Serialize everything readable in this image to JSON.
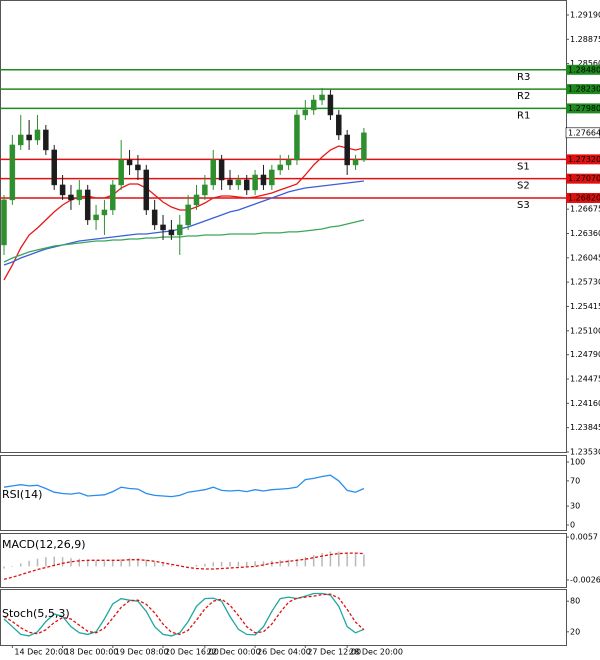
{
  "chart_data": [
    {
      "type": "candlestick",
      "categories": [
        null,
        "14 Dec 20:00",
        null,
        null,
        null,
        null,
        null,
        "18 Dec 00:00",
        null,
        null,
        null,
        null,
        null,
        "19 Dec 08:00",
        null,
        null,
        null,
        null,
        null,
        "20 Dec 16:00",
        null,
        null,
        null,
        null,
        "22 Dec 00:00",
        null,
        null,
        null,
        null,
        null,
        "26 Dec 04:00",
        null,
        null,
        null,
        null,
        null,
        "27 Dec 12:00",
        null,
        null,
        null,
        null,
        "28 Dec 20:00",
        null,
        null
      ],
      "open": [
        1.26212,
        1.26795,
        1.27507,
        1.27636,
        1.27571,
        1.27701,
        1.27442,
        1.26989,
        1.26859,
        1.26795,
        1.26924,
        1.26536,
        1.266,
        1.26665,
        1.26989,
        1.27312,
        1.27248,
        1.27183,
        1.26665,
        1.26471,
        1.26406,
        1.26341,
        1.26471,
        1.2673,
        1.26859,
        1.26989,
        1.27312,
        1.27053,
        1.26989,
        1.27053,
        1.26924,
        1.27118,
        1.26989,
        1.27183,
        1.27248,
        1.27312,
        1.27895,
        1.2796,
        1.28089,
        1.28154,
        1.27895,
        1.27636,
        1.27248,
        1.27312
      ],
      "high": [
        1.26859,
        1.27636,
        1.27895,
        1.2783,
        1.27895,
        1.27765,
        1.27507,
        1.27118,
        1.26989,
        1.27053,
        1.26989,
        1.2673,
        1.26795,
        1.27053,
        1.27571,
        1.27442,
        1.27377,
        1.27248,
        1.26795,
        1.266,
        1.26536,
        1.266,
        1.26859,
        1.26989,
        1.27118,
        1.27442,
        1.27377,
        1.27183,
        1.27118,
        1.27118,
        1.27183,
        1.27248,
        1.27248,
        1.27377,
        1.27377,
        1.2796,
        1.28089,
        1.28154,
        1.28245,
        1.28219,
        1.2796,
        1.27701,
        1.27377,
        1.27727
      ],
      "low": [
        1.26082,
        1.2673,
        1.27442,
        1.27442,
        1.27507,
        1.27377,
        1.26924,
        1.26795,
        1.26665,
        1.2673,
        1.26471,
        1.26406,
        1.26341,
        1.266,
        1.26924,
        1.27118,
        1.27053,
        1.266,
        1.26406,
        1.26276,
        1.26276,
        1.26082,
        1.26406,
        1.26665,
        1.26795,
        1.26924,
        1.26924,
        1.26924,
        1.26924,
        1.26859,
        1.26859,
        1.26924,
        1.26924,
        1.27118,
        1.27183,
        1.27248,
        1.2783,
        1.27895,
        1.28024,
        1.2783,
        1.27571,
        1.27118,
        1.27183,
        1.27286
      ],
      "close": [
        1.26795,
        1.27507,
        1.27636,
        1.27571,
        1.27701,
        1.27442,
        1.26989,
        1.26859,
        1.26795,
        1.26924,
        1.26536,
        1.266,
        1.26665,
        1.26989,
        1.27312,
        1.27248,
        1.27183,
        1.26665,
        1.26471,
        1.26406,
        1.26341,
        1.26471,
        1.2673,
        1.26859,
        1.26989,
        1.27312,
        1.27053,
        1.26989,
        1.27053,
        1.26924,
        1.27118,
        1.26989,
        1.27183,
        1.27248,
        1.27312,
        1.27895,
        1.2796,
        1.28089,
        1.28154,
        1.27895,
        1.27636,
        1.27248,
        1.27312,
        1.27664
      ],
      "up_color": "#2f8f2f",
      "down_color": "#1c1c1c",
      "moving_averages": [
        {
          "color": "#e81818",
          "values": [
            1.25758,
            1.25952,
            1.26172,
            1.26341,
            1.26431,
            1.26535,
            1.26639,
            1.26729,
            1.26794,
            1.26833,
            1.26846,
            1.2682,
            1.2682,
            1.26859,
            1.26949,
            1.27001,
            1.27001,
            1.26949,
            1.26859,
            1.26768,
            1.26703,
            1.26664,
            1.26664,
            1.26703,
            1.26755,
            1.2682,
            1.26846,
            1.26846,
            1.26833,
            1.2682,
            1.26833,
            1.26859,
            1.26885,
            1.26924,
            1.26962,
            1.27001,
            1.27118,
            1.27247,
            1.27351,
            1.27441,
            1.27493,
            1.27467,
            1.27441,
            1.27467
          ]
        },
        {
          "color": "#3a5fd8",
          "values": [
            1.25952,
            1.25991,
            1.26043,
            1.26082,
            1.26121,
            1.26159,
            1.26185,
            1.26211,
            1.26237,
            1.26263,
            1.26276,
            1.26289,
            1.26302,
            1.26315,
            1.26328,
            1.26341,
            1.26354,
            1.26354,
            1.26367,
            1.2638,
            1.26392,
            1.26418,
            1.26444,
            1.26483,
            1.26522,
            1.26561,
            1.266,
            1.26639,
            1.26664,
            1.26703,
            1.26742,
            1.26781,
            1.2682,
            1.26859,
            1.26898,
            1.26924,
            1.26949,
            1.26962,
            1.26975,
            1.26988,
            1.27001,
            1.27014,
            1.27027,
            1.2704
          ]
        },
        {
          "color": "#3aa65a",
          "values": [
            1.25991,
            1.26043,
            1.26082,
            1.26121,
            1.26147,
            1.26172,
            1.26198,
            1.26211,
            1.26224,
            1.26237,
            1.2625,
            1.26263,
            1.26263,
            1.26276,
            1.26276,
            1.26289,
            1.26289,
            1.26302,
            1.26302,
            1.26315,
            1.26315,
            1.26315,
            1.26328,
            1.26328,
            1.26341,
            1.26341,
            1.26341,
            1.26354,
            1.26354,
            1.26354,
            1.26354,
            1.26367,
            1.26367,
            1.26367,
            1.2638,
            1.2638,
            1.26392,
            1.26405,
            1.26418,
            1.26444,
            1.26457,
            1.26483,
            1.26509,
            1.26535
          ]
        }
      ],
      "levels": [
        {
          "name": "R3",
          "value": 1.2848,
          "label": "1.28480",
          "color": "#1f8a1f"
        },
        {
          "name": "R2",
          "value": 1.2823,
          "label": "1.28230",
          "color": "#1f8a1f"
        },
        {
          "name": "R1",
          "value": 1.2798,
          "label": "1.27980",
          "color": "#1f8a1f"
        },
        {
          "name": "S1",
          "value": 1.2732,
          "label": "1.27320",
          "color": "#e01010"
        },
        {
          "name": "S2",
          "value": 1.2707,
          "label": "1.27070",
          "color": "#e01010"
        },
        {
          "name": "S3",
          "value": 1.2682,
          "label": "1.26820",
          "color": "#e01010"
        }
      ],
      "last_price": 1.27664,
      "ylim": [
        1.2353,
        1.29384
      ],
      "yticks": [
        {
          "value": 1.2919,
          "label": "1.29190"
        },
        {
          "value": 1.28875,
          "label": "1.28875"
        },
        {
          "value": 1.2856,
          "label": "1.28560"
        },
        {
          "value": 1.26675,
          "label": "1.26675"
        },
        {
          "value": 1.2636,
          "label": "1.26360"
        },
        {
          "value": 1.26045,
          "label": "1.26045"
        },
        {
          "value": 1.2573,
          "label": "1.25730"
        },
        {
          "value": 1.25415,
          "label": "1.25415"
        },
        {
          "value": 1.251,
          "label": "1.25100"
        },
        {
          "value": 1.2479,
          "label": "1.24790"
        },
        {
          "value": 1.24475,
          "label": "1.24475"
        },
        {
          "value": 1.2416,
          "label": "1.24160"
        },
        {
          "value": 1.23845,
          "label": "1.23845"
        },
        {
          "value": 1.2353,
          "label": "1.23530"
        }
      ]
    },
    {
      "type": "line",
      "title": "RSI(14)",
      "ylim": [
        0,
        100
      ],
      "yticks": [
        100,
        70,
        30,
        0
      ],
      "series": [
        {
          "color": "#2a8cf0",
          "dash": false,
          "values": [
            60,
            62,
            64,
            62,
            63,
            58,
            52,
            50,
            49,
            51,
            46,
            47,
            48,
            53,
            60,
            58,
            57,
            50,
            47,
            46,
            45,
            47,
            52,
            54,
            56,
            60,
            55,
            54,
            55,
            53,
            56,
            54,
            56,
            57,
            58,
            60,
            72,
            74,
            77,
            79,
            70,
            55,
            52,
            58
          ]
        }
      ]
    },
    {
      "type": "macd",
      "title": "MACD(12,26,9)",
      "ylim": [
        -0.004,
        0.0065
      ],
      "yticks": [
        0.0057,
        -0.00262
      ],
      "histogram": {
        "color": "#b8b8b8",
        "values": [
          -0.0004,
          -0.0001,
          0.0006,
          0.0011,
          0.0015,
          0.0018,
          0.0019,
          0.0018,
          0.0016,
          0.0015,
          0.0013,
          0.0011,
          0.001,
          0.0011,
          0.0014,
          0.0016,
          0.0016,
          0.0013,
          0.0009,
          0.0005,
          0.0002,
          0,
          0.0001,
          0.0003,
          0.0005,
          0.0008,
          0.0009,
          0.0009,
          0.0009,
          0.0009,
          0.001,
          0.001,
          0.0011,
          0.0012,
          0.0013,
          0.0014,
          0.0018,
          0.0022,
          0.0026,
          0.0029,
          0.0029,
          0.0027,
          0.0024,
          0.0023
        ]
      },
      "signal": {
        "color": "#e01010",
        "values": [
          -0.0025,
          -0.0021,
          -0.0016,
          -0.0011,
          -0.0006,
          -0.0002,
          0.0002,
          0.0006,
          0.0009,
          0.0011,
          0.0012,
          0.0012,
          0.0012,
          0.0012,
          0.0012,
          0.0013,
          0.0013,
          0.0012,
          0.001,
          0.0007,
          0.0004,
          0.0001,
          -0.0002,
          -0.0004,
          -0.0005,
          -0.0005,
          -0.0004,
          -0.0003,
          -0.0002,
          -0.0001,
          0,
          0.0003,
          0.0006,
          0.0008,
          0.001,
          0.0012,
          0.0014,
          0.0017,
          0.002,
          0.0023,
          0.0025,
          0.0026,
          0.0026,
          0.0025
        ]
      }
    },
    {
      "type": "line",
      "title": "Stoch(5,5,3)",
      "ylim": [
        0,
        100
      ],
      "yticks": [
        80,
        20
      ],
      "series": [
        {
          "color": "#20a8a0",
          "dash": false,
          "values": [
            45,
            30,
            15,
            12,
            20,
            40,
            55,
            50,
            30,
            18,
            15,
            20,
            45,
            75,
            85,
            82,
            80,
            60,
            30,
            15,
            12,
            18,
            40,
            70,
            85,
            86,
            80,
            50,
            25,
            15,
            14,
            30,
            60,
            85,
            88,
            85,
            90,
            95,
            95,
            92,
            70,
            30,
            18,
            25
          ]
        },
        {
          "color": "#e01010",
          "dash": true,
          "values": [
            50,
            40,
            28,
            19,
            16,
            24,
            38,
            48,
            45,
            33,
            21,
            18,
            27,
            47,
            68,
            81,
            82,
            74,
            57,
            35,
            19,
            15,
            23,
            43,
            65,
            80,
            84,
            72,
            52,
            30,
            18,
            20,
            35,
            58,
            78,
            86,
            88,
            90,
            93,
            94,
            86,
            64,
            39,
            24
          ]
        }
      ]
    }
  ]
}
